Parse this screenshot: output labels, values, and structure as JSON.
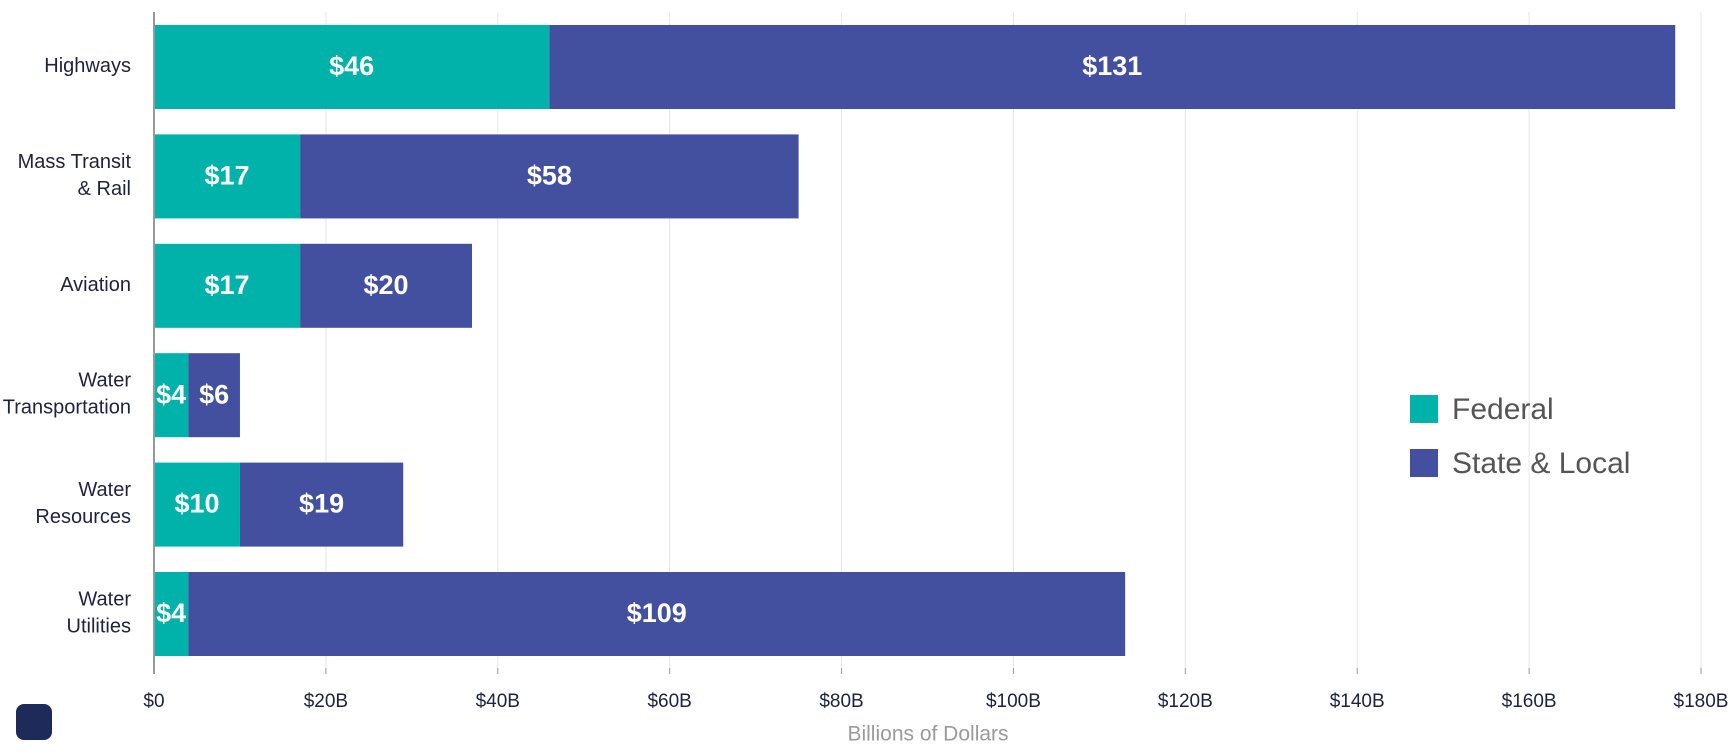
{
  "chart_data": {
    "type": "bar",
    "orientation": "horizontal",
    "stacked": true,
    "categories": [
      "Highways",
      "Mass Transit\n& Rail",
      "Aviation",
      "Water\nTransportation",
      "Water\nResources",
      "Water\nUtilities"
    ],
    "series": [
      {
        "name": "Federal",
        "color": "#00b2a9",
        "values": [
          46,
          17,
          17,
          4,
          10,
          4
        ],
        "value_labels": [
          "$46",
          "$17",
          "$17",
          "$4",
          "$10",
          "$4"
        ]
      },
      {
        "name": "State & Local",
        "color": "#434f9f",
        "values": [
          131,
          58,
          20,
          6,
          19,
          109
        ],
        "value_labels": [
          "$131",
          "$58",
          "$20",
          "$6",
          "$19",
          "$109"
        ]
      }
    ],
    "xlim": [
      0,
      180
    ],
    "xticks": [
      {
        "value": 0,
        "label": "$0"
      },
      {
        "value": 20,
        "label": "$20B"
      },
      {
        "value": 40,
        "label": "$40B"
      },
      {
        "value": 60,
        "label": "$60B"
      },
      {
        "value": 80,
        "label": "$80B"
      },
      {
        "value": 100,
        "label": "$100B"
      },
      {
        "value": 120,
        "label": "$120B"
      },
      {
        "value": 140,
        "label": "$140B"
      },
      {
        "value": 160,
        "label": "$160B"
      },
      {
        "value": 180,
        "label": "$180B"
      }
    ],
    "xlabel": "Billions of Dollars",
    "grid": true,
    "legend": "right"
  }
}
